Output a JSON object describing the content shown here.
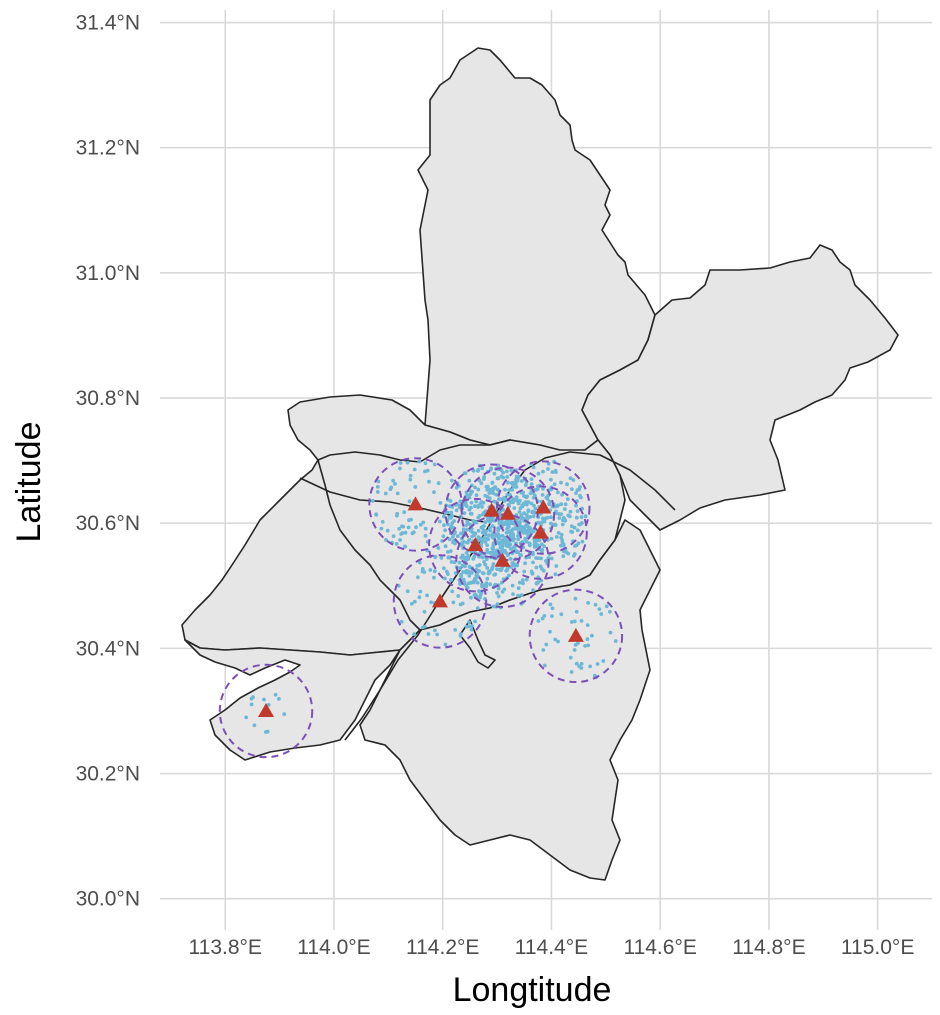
{
  "axes": {
    "x_title": "Longtitude",
    "y_title": "Latitude",
    "x_ticks": [
      {
        "value": 113.8,
        "label": "113.8°E"
      },
      {
        "value": 114.0,
        "label": "114.0°E"
      },
      {
        "value": 114.2,
        "label": "114.2°E"
      },
      {
        "value": 114.4,
        "label": "114.4°E"
      },
      {
        "value": 114.6,
        "label": "114.6°E"
      },
      {
        "value": 114.8,
        "label": "114.8°E"
      },
      {
        "value": 115.0,
        "label": "115.0°E"
      }
    ],
    "y_ticks": [
      {
        "value": 30.0,
        "label": "30.0°N"
      },
      {
        "value": 30.2,
        "label": "30.2°N"
      },
      {
        "value": 30.4,
        "label": "30.4°N"
      },
      {
        "value": 30.6,
        "label": "30.6°N"
      },
      {
        "value": 30.8,
        "label": "30.8°N"
      },
      {
        "value": 31.0,
        "label": "31.0°N"
      },
      {
        "value": 31.2,
        "label": "31.2°N"
      },
      {
        "value": 31.4,
        "label": "31.4°N"
      }
    ],
    "x_range": [
      113.68,
      115.1
    ],
    "y_range": [
      29.95,
      31.42
    ],
    "grid": true
  },
  "map": {
    "region_fill": "#e6e6e6",
    "boundary_color": "#262626",
    "point_color": "#6cb8d6",
    "site_color": "#c0392b",
    "buffer_color": "#7b50b8",
    "buffer_radius_deg": 0.085
  },
  "sites": [
    {
      "lon": 114.15,
      "lat": 30.63
    },
    {
      "lon": 114.29,
      "lat": 30.62
    },
    {
      "lon": 114.32,
      "lat": 30.615
    },
    {
      "lon": 114.385,
      "lat": 30.625
    },
    {
      "lon": 114.38,
      "lat": 30.585
    },
    {
      "lon": 114.26,
      "lat": 30.565
    },
    {
      "lon": 114.31,
      "lat": 30.54
    },
    {
      "lon": 114.195,
      "lat": 30.475
    },
    {
      "lon": 114.445,
      "lat": 30.42
    },
    {
      "lon": 113.875,
      "lat": 30.3
    }
  ]
}
